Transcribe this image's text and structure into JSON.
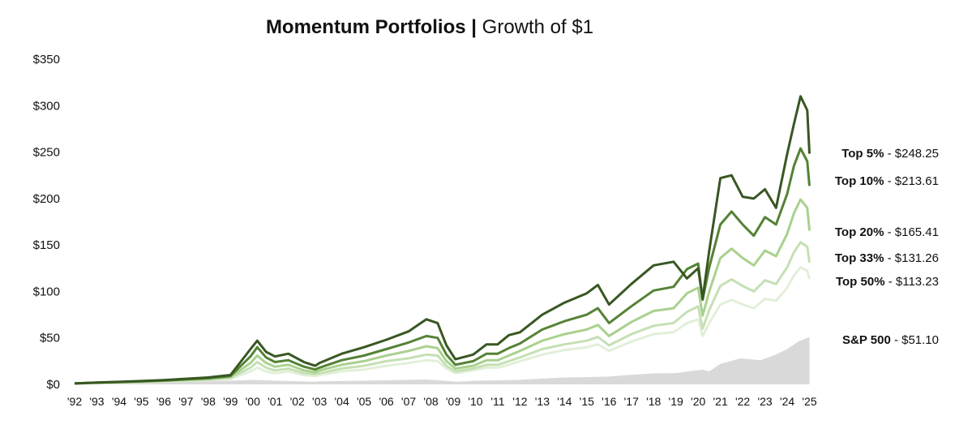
{
  "title": {
    "bold": "Momentum Portfolios",
    "separator": "|",
    "rest": "Growth of $1"
  },
  "chart_data": {
    "type": "line",
    "title": "Momentum Portfolios | Growth of $1",
    "xlabel": "",
    "ylabel": "",
    "ylim": [
      0,
      350
    ],
    "xlim": [
      1992.0,
      2025.2
    ],
    "yticks": [
      0,
      50,
      100,
      150,
      200,
      250,
      300,
      350
    ],
    "ytick_labels": [
      "$0",
      "$50",
      "$100",
      "$150",
      "$200",
      "$250",
      "$300",
      "$350"
    ],
    "xtick_labels": [
      "'92",
      "'93",
      "'94",
      "'95",
      "'96",
      "'97",
      "'98",
      "'99",
      "'00",
      "'01",
      "'02",
      "'03",
      "'04",
      "'05",
      "'06",
      "'07",
      "'08",
      "'09",
      "'10",
      "'11",
      "'12",
      "'13",
      "'14",
      "'15",
      "'16",
      "'17",
      "'18",
      "'19",
      "'20",
      "'21",
      "'22",
      "'23",
      "'24",
      "'25"
    ],
    "grid": false,
    "legend": "end-of-line labels, right",
    "series": [
      {
        "name": "S&P 500",
        "end_prefix": "S&P 500",
        "end_value": "$51.10",
        "color": "#d9d9d9",
        "kind": "area",
        "x": [
          1992.0,
          1993,
          1994,
          1995,
          1996,
          1997,
          1998,
          1999,
          2000,
          2000.7,
          2001.5,
          2002.8,
          2003,
          2004,
          2005,
          2006,
          2007,
          2007.8,
          2008.5,
          2009.2,
          2010,
          2011,
          2012,
          2013,
          2014,
          2015,
          2016,
          2017,
          2018,
          2019,
          2020.2,
          2020.5,
          2021,
          2021.9,
          2022.8,
          2023.5,
          2024,
          2024.5,
          2025.0
        ],
        "y": [
          1,
          1.1,
          1.2,
          1.6,
          2.0,
          2.6,
          3.3,
          4.0,
          4.7,
          4.3,
          3.6,
          2.8,
          3.2,
          3.6,
          3.9,
          4.4,
          4.9,
          5.2,
          4.0,
          2.9,
          3.9,
          4.3,
          4.9,
          6.2,
          7.4,
          7.8,
          8.4,
          10.3,
          11.8,
          12.1,
          16,
          14,
          22,
          28,
          26,
          32,
          38,
          46,
          51.1
        ]
      },
      {
        "name": "Top 50%",
        "end_prefix": "Top 50%",
        "end_value": "$113.23",
        "color": "#e2efd9",
        "kind": "line",
        "x": [
          1992.0,
          1993,
          1994,
          1995,
          1996,
          1997,
          1998,
          1999,
          1999.9,
          2000.2,
          2000.6,
          2001.0,
          2001.6,
          2002.3,
          2002.8,
          2003,
          2004,
          2005,
          2006,
          2007,
          2007.8,
          2008.3,
          2008.7,
          2009.1,
          2009.9,
          2010.5,
          2011,
          2011.5,
          2012,
          2013,
          2014,
          2015,
          2015.5,
          2016,
          2017,
          2018,
          2018.9,
          2019.5,
          2020.0,
          2020.2,
          2020.5,
          2021,
          2021.5,
          2022,
          2022.5,
          2023,
          2023.5,
          2024,
          2024.3,
          2024.6,
          2024.9,
          2025.0
        ],
        "y": [
          1,
          1.5,
          2,
          2.5,
          3.2,
          3.8,
          4.6,
          6,
          14,
          18,
          14,
          12,
          14,
          10,
          9,
          10,
          14,
          16,
          20,
          23,
          26,
          25,
          17,
          12,
          15,
          18,
          18,
          21,
          25,
          32,
          37,
          40,
          43,
          36,
          46,
          54,
          56,
          66,
          70,
          52,
          66,
          86,
          91,
          86,
          82,
          92,
          90,
          104,
          117,
          126,
          122,
          113.23
        ]
      },
      {
        "name": "Top 33%",
        "end_prefix": "Top 33%",
        "end_value": "$131.26",
        "color": "#c5e0b4",
        "kind": "line",
        "x": [
          1992.0,
          1993,
          1994,
          1995,
          1996,
          1997,
          1998,
          1999,
          1999.9,
          2000.2,
          2000.6,
          2001.0,
          2001.6,
          2002.3,
          2002.8,
          2003,
          2004,
          2005,
          2006,
          2007,
          2007.8,
          2008.3,
          2008.7,
          2009.1,
          2009.9,
          2010.5,
          2011,
          2011.5,
          2012,
          2013,
          2014,
          2015,
          2015.5,
          2016,
          2017,
          2018,
          2018.9,
          2019.5,
          2020.0,
          2020.2,
          2020.5,
          2021,
          2021.5,
          2022,
          2022.5,
          2023,
          2023.5,
          2024,
          2024.3,
          2024.6,
          2024.9,
          2025.0
        ],
        "y": [
          1,
          1.6,
          2.1,
          2.7,
          3.5,
          4.2,
          5.1,
          7,
          18,
          24,
          18,
          15,
          17,
          12,
          11,
          12,
          17,
          20,
          25,
          28,
          32,
          31,
          20,
          14,
          17,
          21,
          21,
          25,
          29,
          38,
          43,
          47,
          51,
          42,
          54,
          63,
          66,
          78,
          84,
          60,
          80,
          106,
          113,
          106,
          100,
          112,
          108,
          126,
          142,
          153,
          148,
          131.26
        ]
      },
      {
        "name": "Top 20%",
        "end_prefix": "Top 20%",
        "end_value": "$165.41",
        "color": "#a9d18e",
        "kind": "line",
        "x": [
          1992.0,
          1993,
          1994,
          1995,
          1996,
          1997,
          1998,
          1999,
          1999.9,
          2000.2,
          2000.6,
          2001.0,
          2001.6,
          2002.3,
          2002.8,
          2003,
          2004,
          2005,
          2006,
          2007,
          2007.8,
          2008.3,
          2008.7,
          2009.1,
          2009.9,
          2010.5,
          2011,
          2011.5,
          2012,
          2013,
          2014,
          2015,
          2015.5,
          2016,
          2017,
          2018,
          2018.9,
          2019.5,
          2020.0,
          2020.2,
          2020.5,
          2021,
          2021.5,
          2022,
          2022.5,
          2023,
          2023.5,
          2024,
          2024.3,
          2024.6,
          2024.9,
          2025.0
        ],
        "y": [
          1,
          1.7,
          2.3,
          3,
          3.8,
          4.8,
          5.8,
          8,
          23,
          31,
          23,
          19,
          21,
          15,
          13,
          15,
          21,
          25,
          31,
          36,
          41,
          39,
          25,
          17,
          20,
          26,
          26,
          31,
          36,
          47,
          54,
          59,
          64,
          52,
          67,
          79,
          82,
          98,
          104,
          74,
          100,
          136,
          146,
          136,
          128,
          144,
          138,
          162,
          184,
          199,
          190,
          165.41
        ]
      },
      {
        "name": "Top 10%",
        "end_prefix": "Top 10%",
        "end_value": "$213.61",
        "color": "#548235",
        "kind": "line",
        "x": [
          1992.0,
          1993,
          1994,
          1995,
          1996,
          1997,
          1998,
          1999,
          1999.9,
          2000.2,
          2000.6,
          2001.0,
          2001.6,
          2002.3,
          2002.8,
          2003,
          2004,
          2005,
          2006,
          2007,
          2007.8,
          2008.3,
          2008.7,
          2009.1,
          2009.9,
          2010.5,
          2011,
          2011.5,
          2012,
          2013,
          2014,
          2015,
          2015.5,
          2016,
          2017,
          2018,
          2018.9,
          2019.5,
          2020.0,
          2020.2,
          2020.5,
          2021,
          2021.5,
          2022,
          2022.5,
          2023,
          2023.5,
          2024,
          2024.3,
          2024.6,
          2024.9,
          2025.0
        ],
        "y": [
          1,
          1.8,
          2.5,
          3.3,
          4.2,
          5.4,
          6.6,
          9,
          30,
          40,
          29,
          24,
          26,
          19,
          16,
          18,
          26,
          31,
          38,
          45,
          52,
          50,
          32,
          21,
          25,
          33,
          33,
          39,
          44,
          59,
          68,
          75,
          82,
          66,
          84,
          101,
          105,
          124,
          130,
          91,
          126,
          172,
          186,
          172,
          160,
          180,
          172,
          205,
          235,
          254,
          240,
          213.61
        ]
      },
      {
        "name": "Top 5%",
        "end_prefix": "Top 5%",
        "end_value": "$248.25",
        "color": "#385723",
        "kind": "line",
        "x": [
          1992.0,
          1993,
          1994,
          1995,
          1996,
          1997,
          1998,
          1999,
          1999.9,
          2000.2,
          2000.6,
          2001.0,
          2001.6,
          2002.3,
          2002.8,
          2003,
          2004,
          2005,
          2006,
          2007,
          2007.8,
          2008.3,
          2008.7,
          2009.1,
          2009.9,
          2010.5,
          2011,
          2011.5,
          2012,
          2013,
          2014,
          2015,
          2015.5,
          2016,
          2017,
          2018,
          2018.9,
          2019.5,
          2020.0,
          2020.2,
          2020.5,
          2021,
          2021.5,
          2022,
          2022.5,
          2023,
          2023.5,
          2024,
          2024.3,
          2024.6,
          2024.9,
          2025.0
        ],
        "y": [
          1,
          1.9,
          2.7,
          3.6,
          4.6,
          6,
          7.4,
          10,
          38,
          47,
          35,
          30,
          33,
          24,
          20,
          23,
          33,
          40,
          48,
          57,
          70,
          66,
          42,
          27,
          32,
          43,
          43,
          53,
          56,
          75,
          88,
          98,
          107,
          86,
          108,
          128,
          132,
          114,
          125,
          92,
          144,
          222,
          225,
          202,
          200,
          210,
          190,
          248,
          280,
          310,
          295,
          248.25
        ]
      }
    ]
  }
}
